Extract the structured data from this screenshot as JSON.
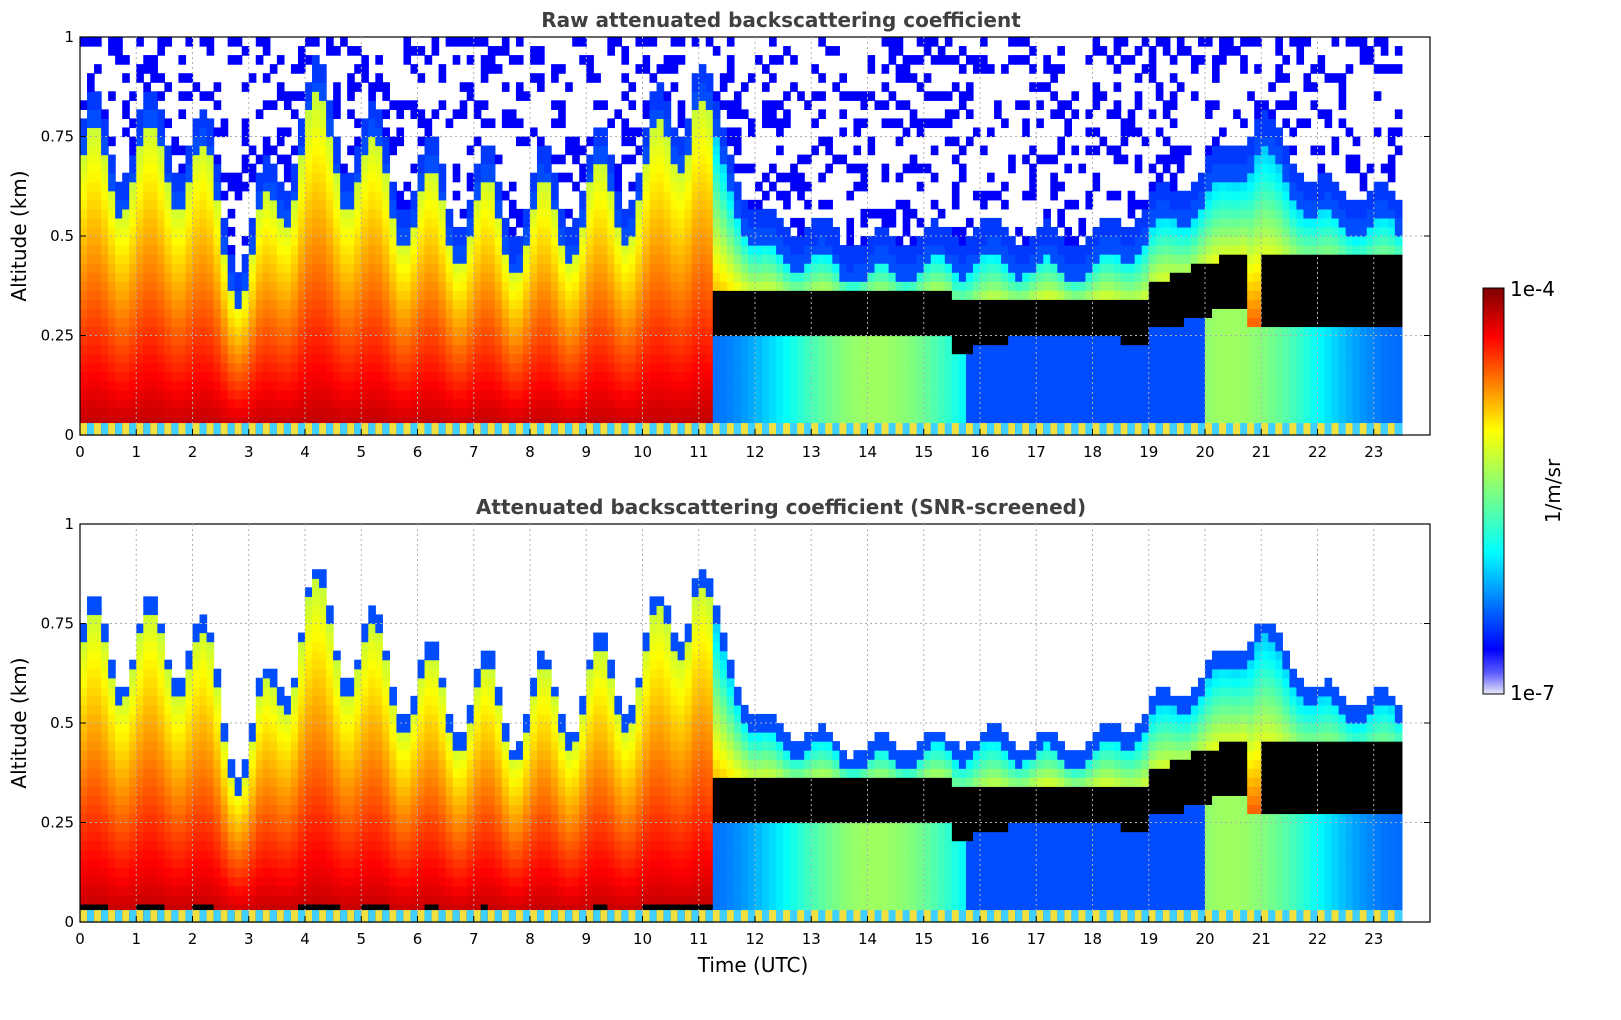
{
  "chart_data": [
    {
      "type": "heatmap",
      "title": "Raw attenuated backscattering coefficient",
      "xlabel": "",
      "ylabel": "Altitude (km)",
      "xlim": [
        0,
        24
      ],
      "ylim": [
        0,
        1
      ],
      "xticks": [
        "0",
        "1",
        "2",
        "3",
        "4",
        "5",
        "6",
        "7",
        "8",
        "9",
        "10",
        "11",
        "12",
        "13",
        "14",
        "15",
        "16",
        "17",
        "18",
        "19",
        "20",
        "21",
        "22",
        "23"
      ],
      "yticks": [
        "0",
        "0.25",
        "0.5",
        "0.75",
        "1"
      ],
      "grid": true,
      "data_end_time": 23.5,
      "screened": false,
      "boundary_layer_top_km": [
        {
          "t": 0,
          "z": 0.7
        },
        {
          "t": 2,
          "z": 0.72
        },
        {
          "t": 3,
          "z": 0.42
        },
        {
          "t": 4,
          "z": 0.8
        },
        {
          "t": 6,
          "z": 0.6
        },
        {
          "t": 8,
          "z": 0.55
        },
        {
          "t": 10,
          "z": 0.65
        },
        {
          "t": 11,
          "z": 0.9
        },
        {
          "t": 12,
          "z": 0.5
        },
        {
          "t": 14,
          "z": 0.44
        },
        {
          "t": 16,
          "z": 0.47
        },
        {
          "t": 18,
          "z": 0.45
        },
        {
          "t": 20,
          "z": 0.62
        },
        {
          "t": 21,
          "z": 0.75
        },
        {
          "t": 22,
          "z": 0.58
        },
        {
          "t": 23.5,
          "z": 0.55
        }
      ],
      "strong_layer_km": [
        {
          "t": 11.2,
          "bottom": 0.26,
          "top": 0.37
        },
        {
          "t": 14,
          "bottom": 0.26,
          "top": 0.36
        },
        {
          "t": 17.5,
          "bottom": 0.22,
          "top": 0.35
        },
        {
          "t": 19.5,
          "bottom": 0.26,
          "top": 0.38
        },
        {
          "t": 20,
          "bottom": 0.3,
          "top": 0.45
        }
      ]
    },
    {
      "type": "heatmap",
      "title": "Attenuated backscattering coefficient (SNR-screened)",
      "xlabel": "Time (UTC)",
      "ylabel": "Altitude (km)",
      "xlim": [
        0,
        24
      ],
      "ylim": [
        0,
        1
      ],
      "xticks": [
        "0",
        "1",
        "2",
        "3",
        "4",
        "5",
        "6",
        "7",
        "8",
        "9",
        "10",
        "11",
        "12",
        "13",
        "14",
        "15",
        "16",
        "17",
        "18",
        "19",
        "20",
        "21",
        "22",
        "23"
      ],
      "yticks": [
        "0",
        "0.25",
        "0.5",
        "0.75",
        "1"
      ],
      "grid": true,
      "data_end_time": 23.5,
      "screened": true
    }
  ],
  "colorbar": {
    "min_label": "1e-7",
    "max_label": "1e-4",
    "label": "1/m/sr",
    "colormap": "jet",
    "low_color": "#e6e6f5",
    "high_color": "#7f0000",
    "saturated_color": "#000000"
  }
}
